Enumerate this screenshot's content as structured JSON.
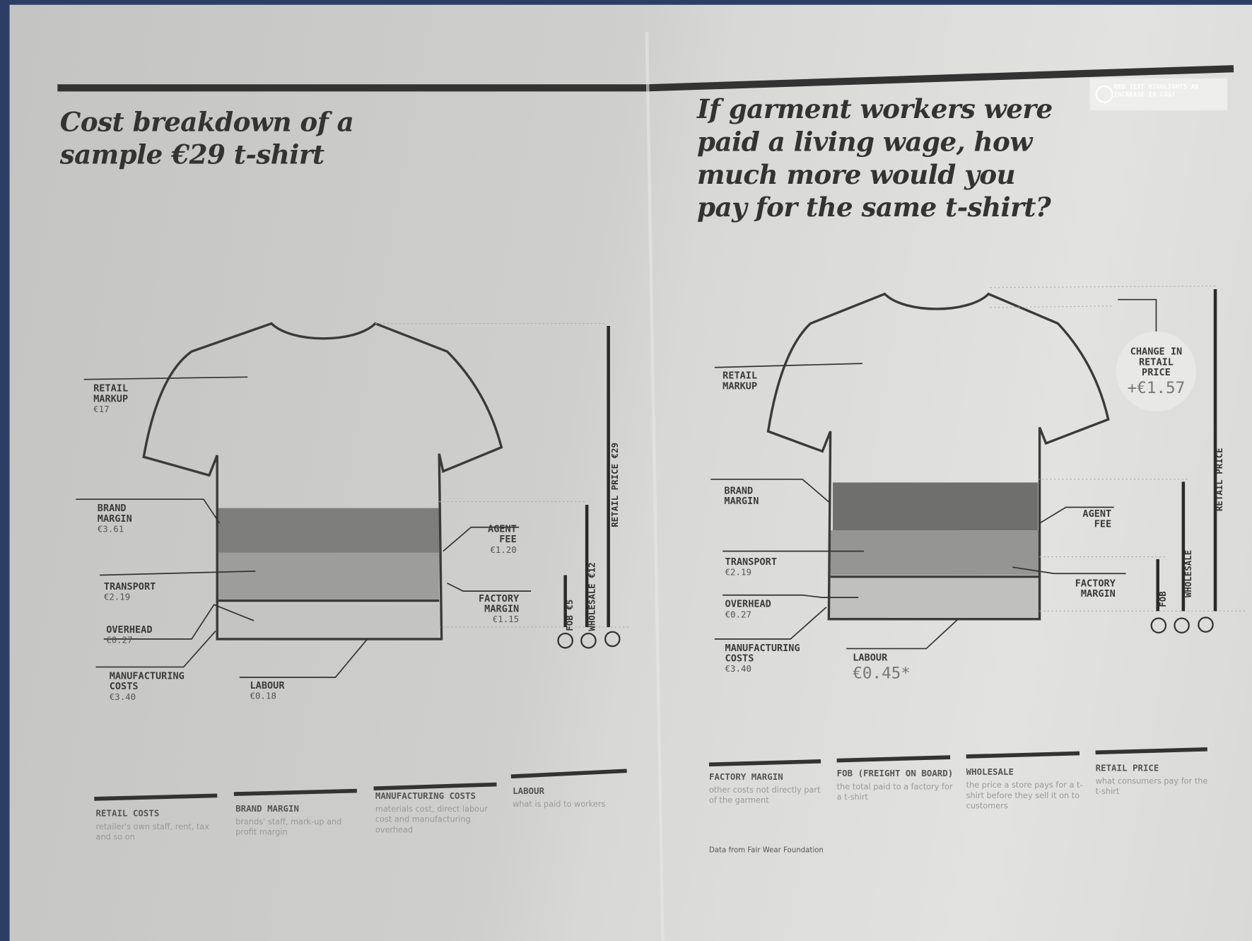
{
  "left": {
    "title": "Cost breakdown of a sample €29 t-shirt",
    "labels": [
      {
        "name": "RETAIL MARKUP",
        "value": "€17"
      },
      {
        "name": "BRAND MARGIN",
        "value": "€3.61"
      },
      {
        "name": "TRANSPORT",
        "value": "€2.19"
      },
      {
        "name": "OVERHEAD",
        "value": "€0.27"
      },
      {
        "name": "MANUFACTURING COSTS",
        "value": "€3.40"
      },
      {
        "name": "LABOUR",
        "value": "€0.18"
      },
      {
        "name": "AGENT FEE",
        "value": "€1.20"
      },
      {
        "name": "FACTORY MARGIN",
        "value": "€1.15"
      }
    ],
    "arrows": [
      "FOB €5",
      "WHOLESALE €12",
      "RETAIL PRICE €29"
    ]
  },
  "right": {
    "title": "If garment workers were paid a living wage, how much more would you pay for the same t-shirt?",
    "note": "RED TEXT HIGHLIGHTS AN INCREASE IN COST",
    "labels": [
      {
        "name": "RETAIL MARKUP"
      },
      {
        "name": "BRAND MARGIN"
      },
      {
        "name": "TRANSPORT",
        "value": "€2.19"
      },
      {
        "name": "OVERHEAD",
        "value": "€0.27"
      },
      {
        "name": "MANUFACTURING COSTS",
        "value": "€3.40"
      },
      {
        "name": "LABOUR",
        "value": "€0.45*"
      },
      {
        "name": "AGENT FEE"
      },
      {
        "name": "FACTORY MARGIN"
      }
    ],
    "change": {
      "name": "CHANGE IN RETAIL PRICE",
      "value": "+€1.57"
    },
    "arrows": [
      "FOB",
      "WHOLESALE",
      "RETAIL PRICE"
    ]
  },
  "legend": [
    {
      "title": "RETAIL COSTS",
      "text": "retailer's own staff, rent, tax and so on"
    },
    {
      "title": "BRAND MARGIN",
      "text": "brands' staff, mark-up and profit margin"
    },
    {
      "title": "MANUFACTURING COSTS",
      "text": "materials cost, direct labour cost and manufacturing overhead"
    },
    {
      "title": "LABOUR",
      "text": "what is paid to workers"
    },
    {
      "title": "FACTORY MARGIN",
      "text": "other costs not directly part of the garment"
    },
    {
      "title": "FOB (FREIGHT ON BOARD)",
      "text": "the total paid to a factory for a t-shirt"
    },
    {
      "title": "WHOLESALE",
      "text": "the price a store pays for a t-shirt before they sell it on to customers"
    },
    {
      "title": "RETAIL PRICE",
      "text": "what consumers pay for the t-shirt"
    }
  ],
  "source": "Data from Fair Wear Foundation"
}
